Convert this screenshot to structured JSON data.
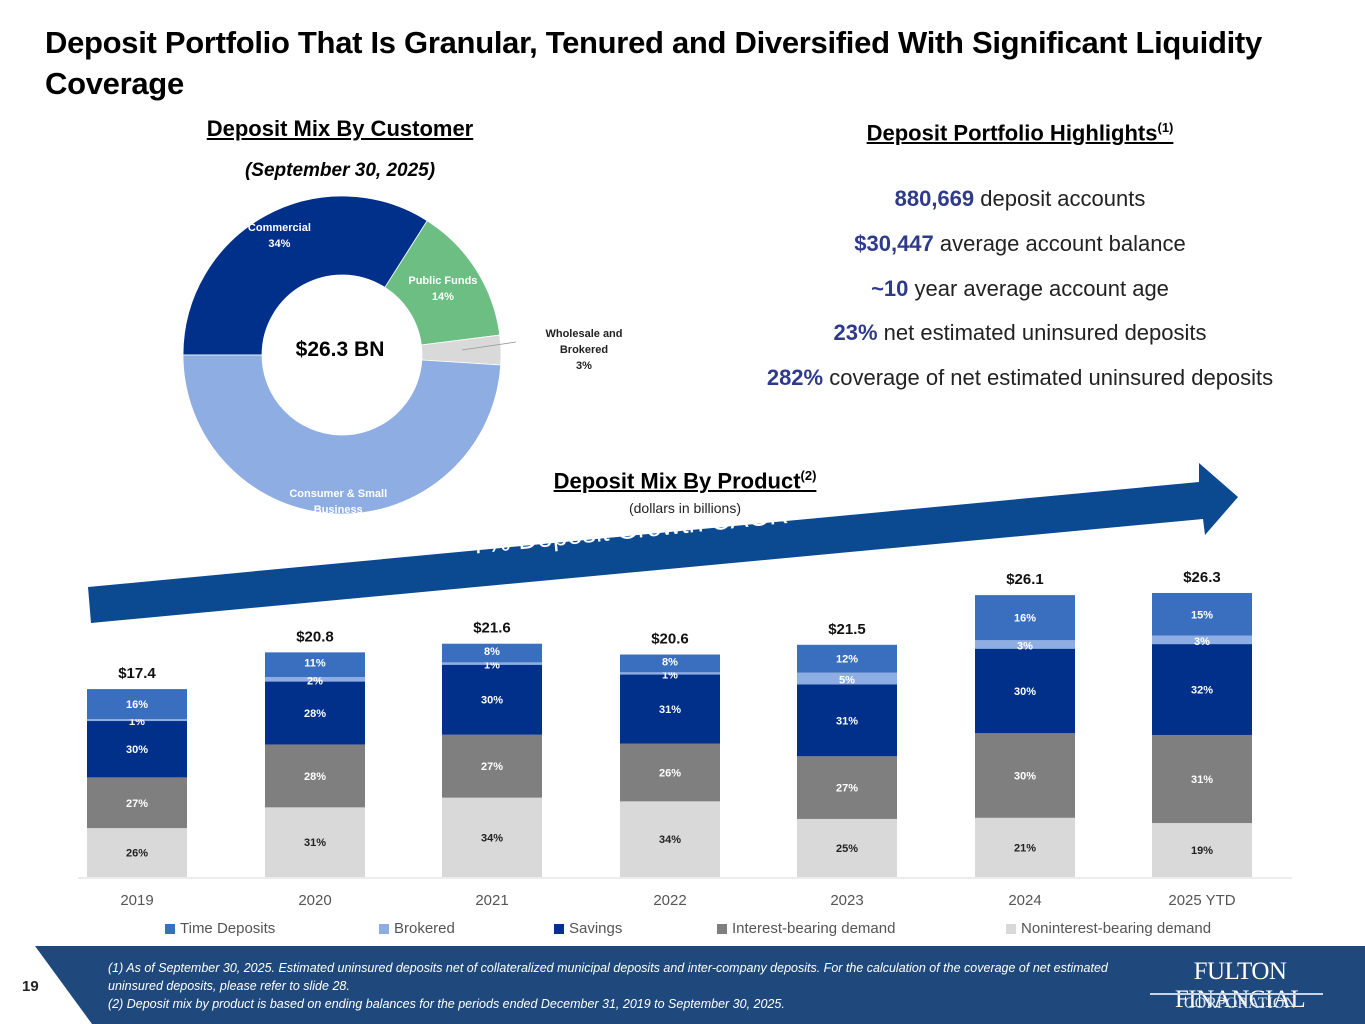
{
  "title": "Deposit Portfolio That Is Granular, Tenured and Diversified With Significant Liquidity Coverage",
  "customer_section": {
    "title": "Deposit Mix By Customer",
    "date": "(September 30, 2025)",
    "center_label": "$26.3 BN"
  },
  "highlights": {
    "title": "Deposit Portfolio Highlights",
    "title_sup": "(1)",
    "items": [
      {
        "value": "880,669",
        "text": " deposit accounts"
      },
      {
        "value": "$30,447",
        "text": " average account balance"
      },
      {
        "value": "~10",
        "text": " year average account age"
      },
      {
        "value": "23%",
        "text": " net estimated uninsured deposits"
      },
      {
        "value": "282%",
        "text": " coverage of net estimated uninsured deposits"
      }
    ]
  },
  "product_section": {
    "title": "Deposit Mix By Product",
    "title_sup": "(2)",
    "subtitle": "(dollars in billions)",
    "cagr_label": "7% Deposit Growth CAGR"
  },
  "footer": {
    "page_number": "19",
    "footnote_1": "(1) As of September 30, 2025. Estimated uninsured deposits net of collateralized municipal deposits and inter-company deposits. For the calculation of the coverage of net estimated uninsured deposits, please refer to slide 28.",
    "footnote_2": "(2) Deposit mix by product is based on ending balances for the periods ended December 31, 2019 to September 30, 2025.",
    "logo_top": "FULTON FINANCIAL",
    "logo_bottom": "CORPORATION"
  },
  "colors": {
    "navy": "#00308A",
    "time_deposits": "#3A6FBF",
    "brokered": "#8EADE3",
    "savings": "#00308A",
    "interest_bearing": "#7F7F7F",
    "noninterest_bearing": "#D9D9D9",
    "public_funds": "#6DBE83",
    "wholesale": "#D9D9D9",
    "consumer": "#8EADE3",
    "footer_bg": "#1F497D",
    "arrow": "#0B4A91",
    "highlight_num": "#2E3A8C"
  },
  "chart_data": [
    {
      "type": "pie",
      "title": "Deposit Mix By Customer",
      "subtitle": "(September 30, 2025)",
      "center_label": "$26.3 BN",
      "total": 26.3,
      "slices": [
        {
          "label": "Commercial",
          "value": 34,
          "display": "34%"
        },
        {
          "label": "Public Funds",
          "value": 14,
          "display": "14%"
        },
        {
          "label": "Wholesale and Brokered",
          "value": 3,
          "display": "3%"
        },
        {
          "label": "Consumer & Small Business",
          "value": 49,
          "display": "49%"
        }
      ]
    },
    {
      "type": "bar",
      "stacked": true,
      "title": "Deposit Mix By Product",
      "subtitle": "(dollars in billions)",
      "categories": [
        "2019",
        "2020",
        "2021",
        "2022",
        "2023",
        "2024",
        "2025 YTD"
      ],
      "totals": [
        17.4,
        20.8,
        21.6,
        20.6,
        21.5,
        26.1,
        26.3
      ],
      "total_labels": [
        "$17.4",
        "$20.8",
        "$21.6",
        "$20.6",
        "$21.5",
        "$26.1",
        "$26.3"
      ],
      "series": [
        {
          "name": "Noninterest-bearing demand",
          "values": [
            26,
            31,
            34,
            34,
            25,
            21,
            19
          ]
        },
        {
          "name": "Interest-bearing demand",
          "values": [
            27,
            28,
            27,
            26,
            27,
            30,
            31
          ]
        },
        {
          "name": "Savings",
          "values": [
            30,
            28,
            30,
            31,
            31,
            30,
            32
          ]
        },
        {
          "name": "Brokered",
          "values": [
            1,
            2,
            1,
            1,
            5,
            3,
            3
          ]
        },
        {
          "name": "Time Deposits",
          "values": [
            16,
            11,
            8,
            8,
            12,
            16,
            15
          ]
        }
      ],
      "legend": [
        "Time Deposits",
        "Brokered",
        "Savings",
        "Interest-bearing demand",
        "Noninterest-bearing demand"
      ],
      "legend_position": "bottom",
      "annotation": "7% Deposit Growth CAGR",
      "ylim": [
        0,
        27
      ],
      "grid": false
    }
  ]
}
